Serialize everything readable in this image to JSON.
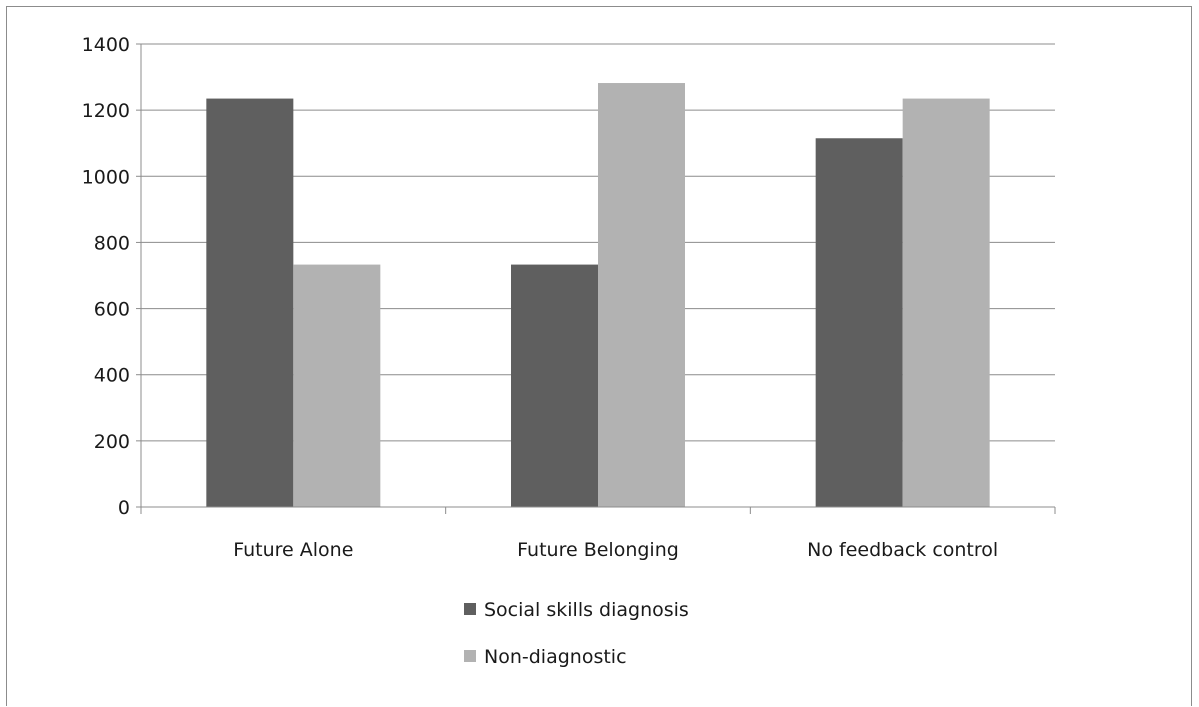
{
  "chart_data": {
    "type": "bar",
    "title": "",
    "xlabel": "",
    "ylabel": "",
    "categories": [
      "Future Alone",
      "Future Belonging",
      "No feedback control"
    ],
    "series": [
      {
        "name": "Social skills diagnosis",
        "values": [
          1235,
          733,
          1115
        ],
        "color": "#5f5f5f"
      },
      {
        "name": "Non-diagnostic",
        "values": [
          733,
          1282,
          1235
        ],
        "color": "#b2b2b2"
      }
    ],
    "ylim": [
      0,
      1400
    ],
    "yticks": [
      0,
      200,
      400,
      600,
      800,
      1000,
      1200,
      1400
    ],
    "grid": true,
    "legend": "bottom"
  },
  "colors": {
    "gridline": "#8c8c8c",
    "axis": "#8c8c8c",
    "frame": "#8c8c8c"
  }
}
